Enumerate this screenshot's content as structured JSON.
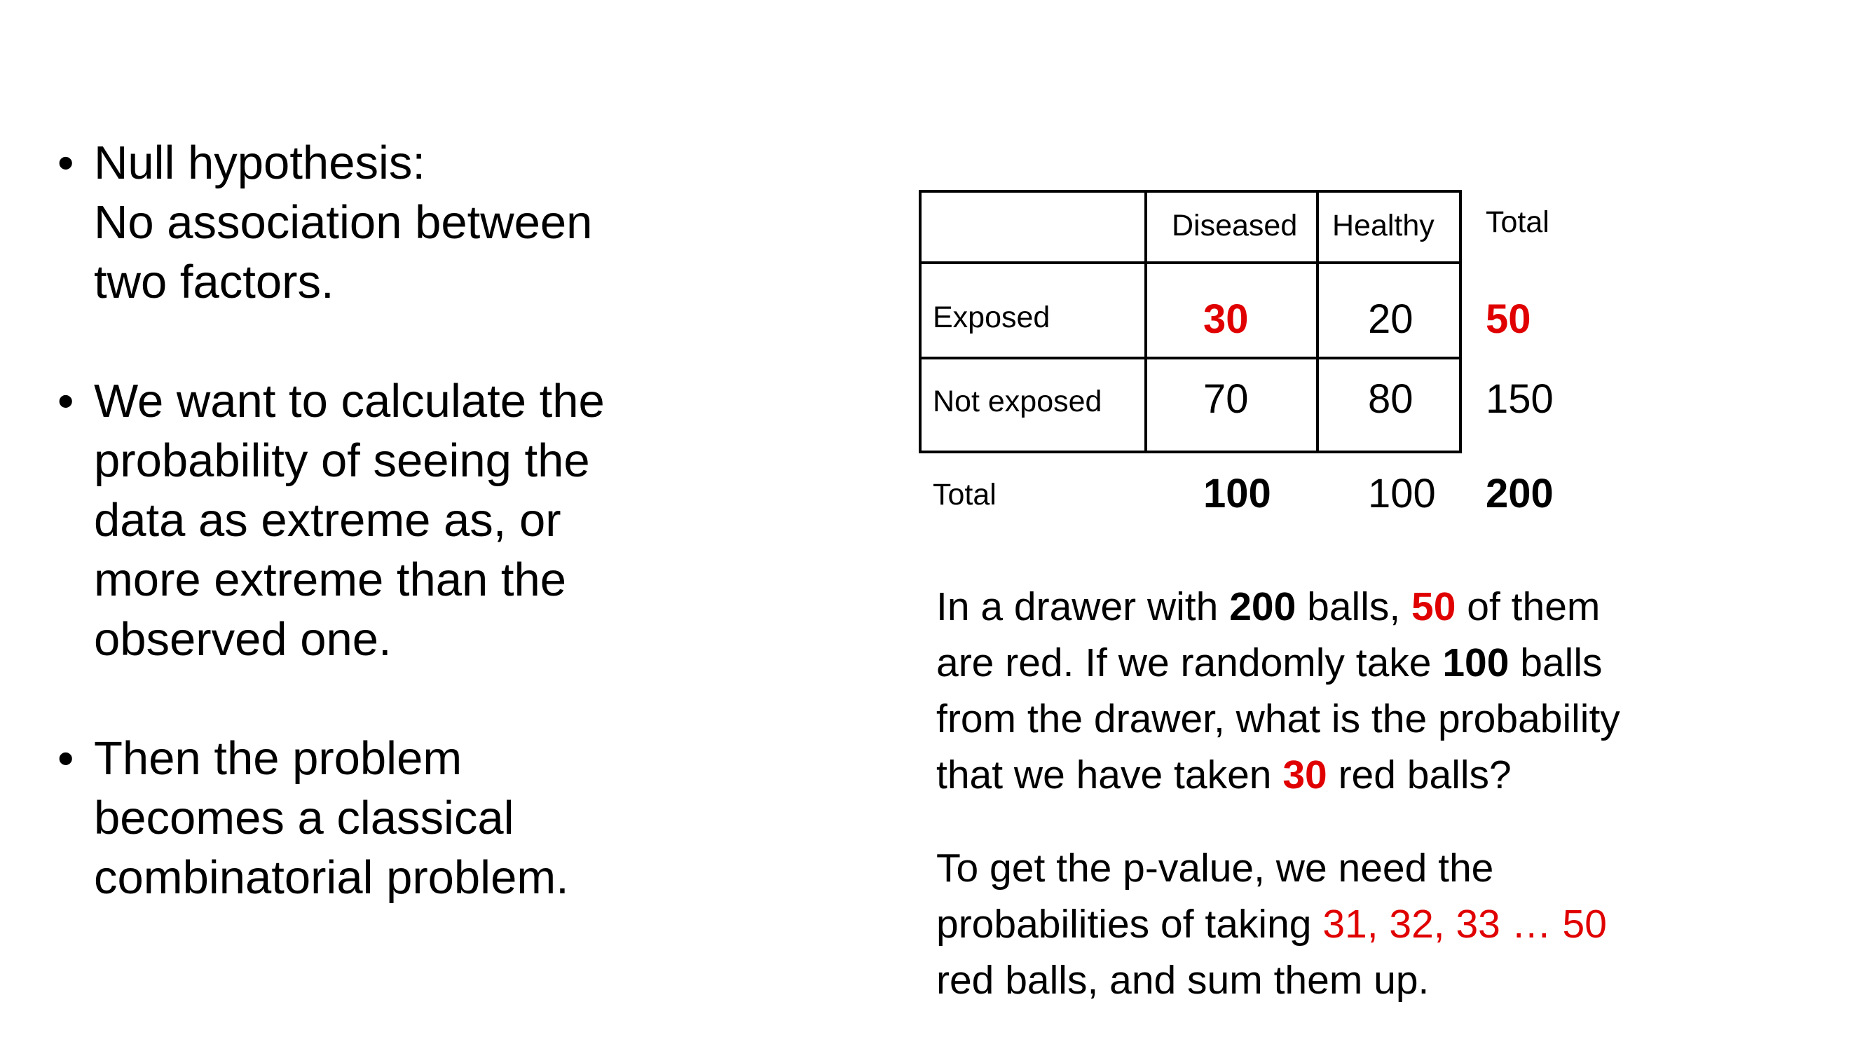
{
  "bullets": [
    {
      "glyph": "•",
      "lines": [
        "Null hypothesis:",
        "No association between",
        "two factors."
      ]
    },
    {
      "glyph": "•",
      "lines": [
        "We want to calculate the",
        "probability of seeing the",
        "data as extreme as, or",
        "more extreme than the",
        "observed one."
      ]
    },
    {
      "glyph": "•",
      "lines": [
        "Then the problem",
        "becomes a classical",
        "combinatorial problem."
      ]
    }
  ],
  "table": {
    "headers": {
      "diseased": "Diseased",
      "healthy": "Healthy",
      "total": "Total"
    },
    "rows": {
      "exposed": {
        "label": "Exposed",
        "diseased": "30",
        "healthy": "20",
        "total": "50"
      },
      "not_exposed": {
        "label": "Not exposed",
        "diseased": "70",
        "healthy": "80",
        "total": "150"
      },
      "total": {
        "label": "Total",
        "diseased": "100",
        "healthy": "100",
        "total": "200"
      }
    }
  },
  "paragraph1": {
    "l1": {
      "a": "In a drawer with ",
      "b": "200",
      "c": " balls, ",
      "d": "50",
      "e": " of them"
    },
    "l2": {
      "a": "are red. If we randomly take ",
      "b": "100",
      "c": " balls"
    },
    "l3": "from the drawer, what is the probability",
    "l4": {
      "a": "that we have taken ",
      "b": "30",
      "c": " red balls?"
    }
  },
  "paragraph2": {
    "l1": "To get the p-value, we need the",
    "l2": {
      "a": "probabilities of taking ",
      "b": "31, 32, 33 … 50"
    },
    "l3": "red balls, and sum them up."
  },
  "colors": {
    "highlight": "#e00000",
    "text": "#000000",
    "background": "#ffffff"
  }
}
